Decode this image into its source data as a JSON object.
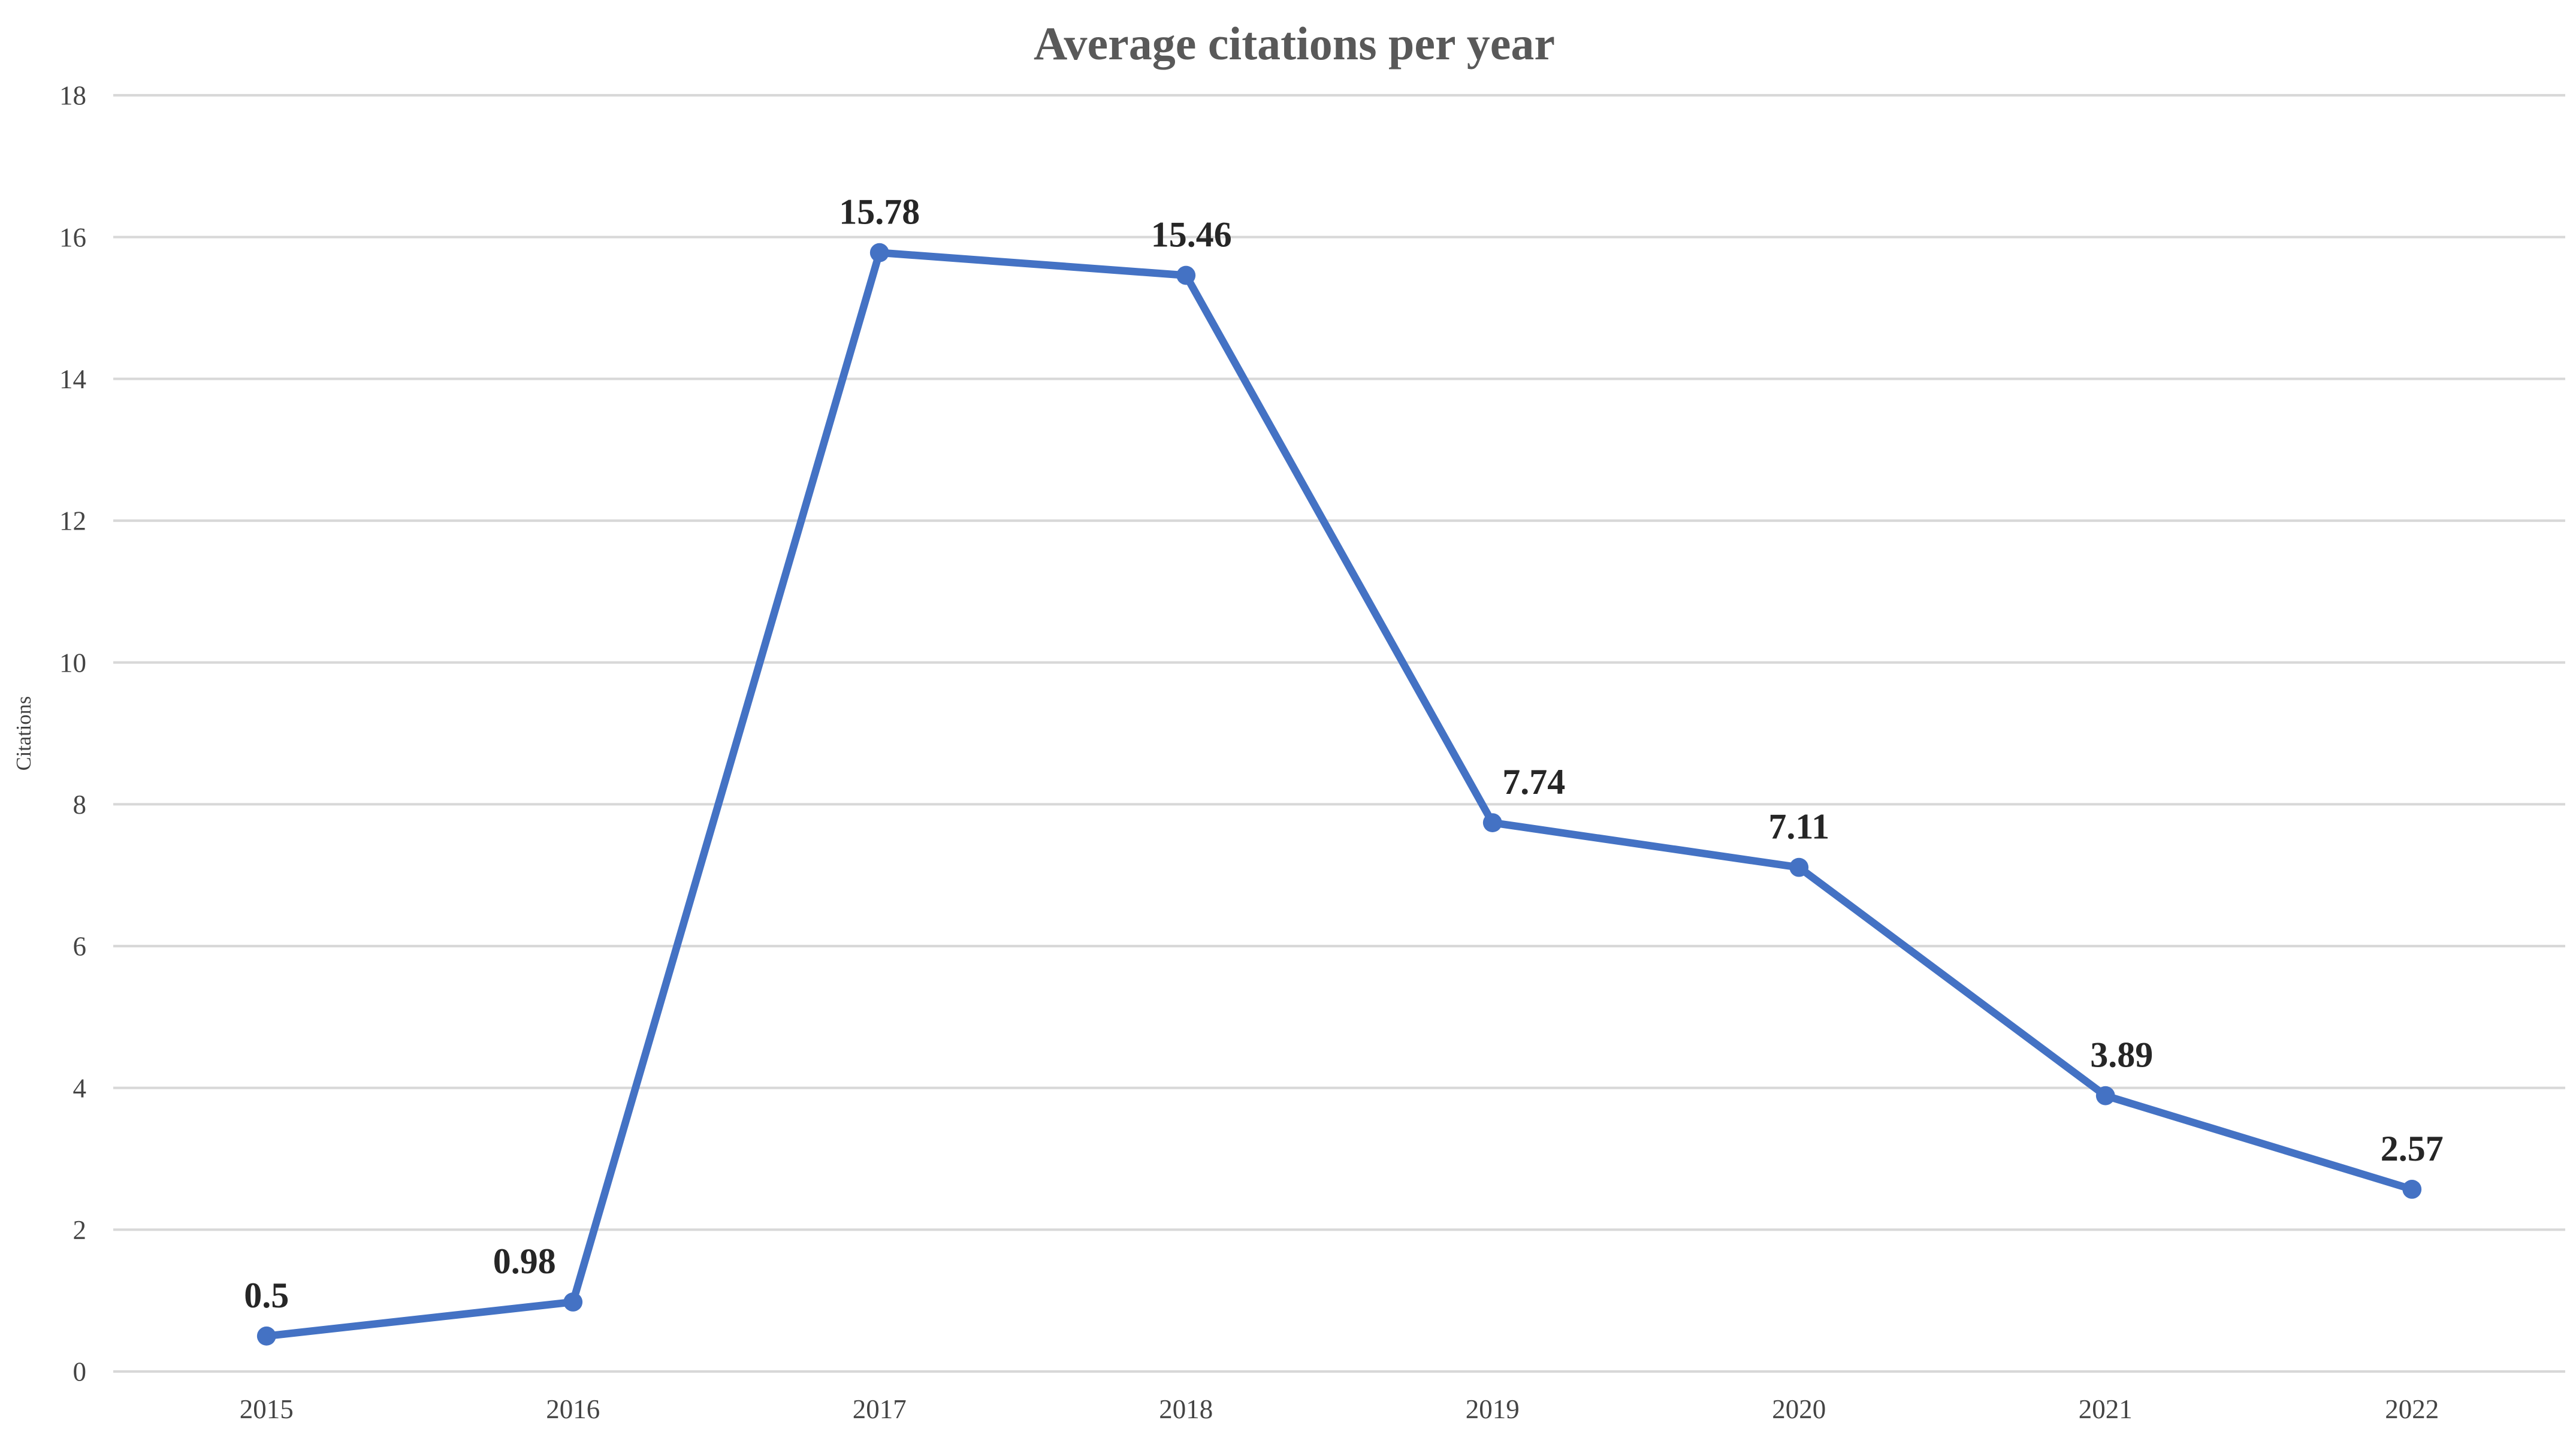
{
  "chart_data": {
    "type": "line",
    "title": "Average citations per year",
    "xlabel": "",
    "ylabel": "Citations",
    "categories": [
      "2015",
      "2016",
      "2017",
      "2018",
      "2019",
      "2020",
      "2021",
      "2022"
    ],
    "series": [
      {
        "name": "Citations",
        "values": [
          0.5,
          0.98,
          15.78,
          15.46,
          7.74,
          7.11,
          3.89,
          2.57
        ]
      }
    ],
    "data_labels": [
      "0.5",
      "0.98",
      "15.78",
      "15.46",
      "7.74",
      "7.11",
      "3.89",
      "2.57"
    ],
    "ylim": [
      0,
      18
    ],
    "ytick_step": 2,
    "ytick_labels": [
      "0",
      "2",
      "4",
      "6",
      "8",
      "10",
      "12",
      "14",
      "16",
      "18"
    ],
    "grid": "horizontal",
    "legend": "none",
    "layout_hints": {
      "label_dx": [
        0,
        -27,
        0,
        3,
        23,
        0,
        9,
        0
      ],
      "label_dy": -16
    },
    "colors": {
      "line": "#4472C4",
      "marker": "#4472C4",
      "grid": "#D8D8D8",
      "title": "#595959",
      "tick": "#444444",
      "axis_title": "#404040",
      "data_label": "#262626",
      "background": "#FFFFFF"
    }
  }
}
